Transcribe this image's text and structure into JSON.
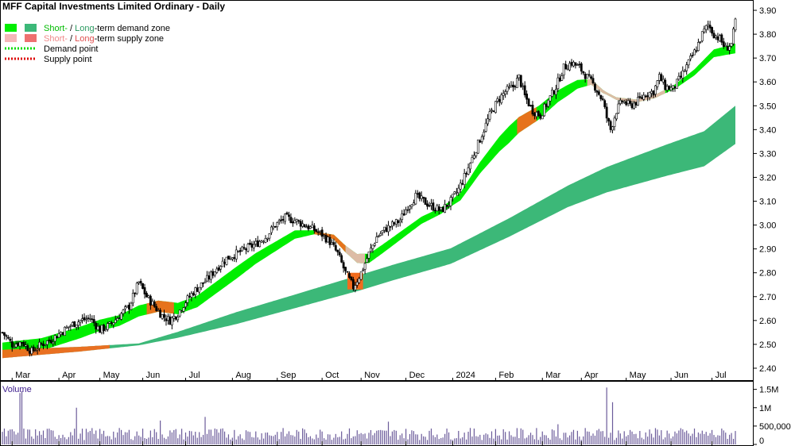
{
  "chart_data": {
    "type": "candlestick",
    "title": "MFF Capital Investments Limited Ordinary - Daily",
    "legend": {
      "demand_zone": {
        "short": "Short-",
        "sep": " / ",
        "long": "Long",
        "rest": "-term demand zone"
      },
      "supply_zone": {
        "short": "Short-",
        "sep": " / ",
        "long": "Long",
        "rest": "-term supply zone"
      },
      "demand_point": "Demand point",
      "supply_point": "Supply point"
    },
    "price_axis": {
      "ylim": [
        2.36,
        3.93
      ],
      "ticks": [
        "2.40",
        "2.50",
        "2.60",
        "2.70",
        "2.80",
        "2.90",
        "3.00",
        "3.10",
        "3.20",
        "3.30",
        "3.40",
        "3.50",
        "3.60",
        "3.70",
        "3.80",
        "3.90"
      ]
    },
    "x_axis": {
      "labels": [
        "Mar",
        "Apr",
        "May",
        "Jun",
        "Jul",
        "Aug",
        "Sep",
        "Oct",
        "Nov",
        "Dec",
        "2024",
        "Feb",
        "Mar",
        "Apr",
        "May",
        "Jun",
        "Jul"
      ],
      "ticks": [
        5,
        29,
        50,
        72,
        94,
        118,
        141,
        164,
        184,
        207,
        231,
        253,
        277,
        297,
        320,
        343,
        364
      ]
    },
    "volume": {
      "title": "Volume",
      "ticks": [
        "1.5M",
        "1M",
        "500,000",
        "0"
      ],
      "tick_values": [
        1500000,
        1000000,
        500000,
        0
      ],
      "ylim": [
        0,
        1600000
      ]
    },
    "price_path": [
      [
        0,
        2.55
      ],
      [
        5,
        2.5
      ],
      [
        10,
        2.51
      ],
      [
        15,
        2.47
      ],
      [
        20,
        2.5
      ],
      [
        25,
        2.52
      ],
      [
        30,
        2.55
      ],
      [
        35,
        2.58
      ],
      [
        40,
        2.6
      ],
      [
        45,
        2.61
      ],
      [
        50,
        2.56
      ],
      [
        55,
        2.58
      ],
      [
        60,
        2.62
      ],
      [
        65,
        2.66
      ],
      [
        68,
        2.72
      ],
      [
        70,
        2.76
      ],
      [
        72,
        2.73
      ],
      [
        74,
        2.7
      ],
      [
        78,
        2.66
      ],
      [
        82,
        2.62
      ],
      [
        86,
        2.6
      ],
      [
        90,
        2.63
      ],
      [
        94,
        2.68
      ],
      [
        98,
        2.72
      ],
      [
        102,
        2.75
      ],
      [
        106,
        2.78
      ],
      [
        110,
        2.82
      ],
      [
        115,
        2.86
      ],
      [
        120,
        2.88
      ],
      [
        125,
        2.9
      ],
      [
        130,
        2.92
      ],
      [
        135,
        2.95
      ],
      [
        140,
        3.0
      ],
      [
        145,
        3.03
      ],
      [
        150,
        3.02
      ],
      [
        155,
        3.0
      ],
      [
        160,
        2.98
      ],
      [
        164,
        2.96
      ],
      [
        168,
        2.93
      ],
      [
        172,
        2.88
      ],
      [
        176,
        2.8
      ],
      [
        180,
        2.74
      ],
      [
        184,
        2.8
      ],
      [
        188,
        2.88
      ],
      [
        192,
        2.95
      ],
      [
        196,
        2.98
      ],
      [
        200,
        3.0
      ],
      [
        204,
        3.02
      ],
      [
        208,
        3.08
      ],
      [
        212,
        3.12
      ],
      [
        216,
        3.1
      ],
      [
        220,
        3.08
      ],
      [
        225,
        3.06
      ],
      [
        230,
        3.1
      ],
      [
        234,
        3.15
      ],
      [
        238,
        3.22
      ],
      [
        242,
        3.3
      ],
      [
        246,
        3.38
      ],
      [
        250,
        3.46
      ],
      [
        254,
        3.52
      ],
      [
        258,
        3.56
      ],
      [
        262,
        3.58
      ],
      [
        265,
        3.62
      ],
      [
        268,
        3.54
      ],
      [
        272,
        3.48
      ],
      [
        276,
        3.46
      ],
      [
        280,
        3.52
      ],
      [
        284,
        3.58
      ],
      [
        288,
        3.66
      ],
      [
        292,
        3.68
      ],
      [
        296,
        3.66
      ],
      [
        300,
        3.62
      ],
      [
        304,
        3.58
      ],
      [
        308,
        3.52
      ],
      [
        310,
        3.45
      ],
      [
        312,
        3.4
      ],
      [
        315,
        3.48
      ],
      [
        318,
        3.52
      ],
      [
        322,
        3.5
      ],
      [
        326,
        3.52
      ],
      [
        330,
        3.55
      ],
      [
        334,
        3.56
      ],
      [
        337,
        3.62
      ],
      [
        340,
        3.58
      ],
      [
        344,
        3.57
      ],
      [
        348,
        3.62
      ],
      [
        352,
        3.68
      ],
      [
        356,
        3.74
      ],
      [
        359,
        3.8
      ],
      [
        362,
        3.84
      ],
      [
        365,
        3.8
      ],
      [
        368,
        3.78
      ],
      [
        371,
        3.74
      ],
      [
        374,
        3.76
      ],
      [
        376,
        3.85
      ]
    ],
    "ema_short": [
      [
        0,
        2.48
      ],
      [
        20,
        2.5
      ],
      [
        40,
        2.55
      ],
      [
        50,
        2.58
      ],
      [
        60,
        2.6
      ],
      [
        70,
        2.64
      ],
      [
        80,
        2.66
      ],
      [
        90,
        2.65
      ],
      [
        100,
        2.68
      ],
      [
        110,
        2.74
      ],
      [
        120,
        2.8
      ],
      [
        130,
        2.86
      ],
      [
        140,
        2.91
      ],
      [
        150,
        2.96
      ],
      [
        160,
        2.97
      ],
      [
        170,
        2.95
      ],
      [
        176,
        2.9
      ],
      [
        182,
        2.86
      ],
      [
        188,
        2.86
      ],
      [
        195,
        2.9
      ],
      [
        205,
        2.96
      ],
      [
        215,
        3.02
      ],
      [
        225,
        3.06
      ],
      [
        235,
        3.12
      ],
      [
        245,
        3.24
      ],
      [
        255,
        3.34
      ],
      [
        265,
        3.42
      ],
      [
        275,
        3.47
      ],
      [
        285,
        3.54
      ],
      [
        295,
        3.59
      ],
      [
        302,
        3.6
      ],
      [
        308,
        3.56
      ],
      [
        315,
        3.53
      ],
      [
        325,
        3.52
      ],
      [
        335,
        3.54
      ],
      [
        345,
        3.58
      ],
      [
        355,
        3.64
      ],
      [
        365,
        3.72
      ],
      [
        376,
        3.74
      ]
    ],
    "short_zone_width": [
      [
        0,
        0.055
      ],
      [
        60,
        0.045
      ],
      [
        120,
        0.05
      ],
      [
        150,
        0.035
      ],
      [
        164,
        0.01
      ],
      [
        184,
        0.04
      ],
      [
        230,
        0.025
      ],
      [
        260,
        0.07
      ],
      [
        290,
        0.045
      ],
      [
        310,
        0.01
      ],
      [
        340,
        0.015
      ],
      [
        376,
        0.04
      ]
    ],
    "ema_long": [
      [
        0,
        2.46
      ],
      [
        40,
        2.48
      ],
      [
        70,
        2.5
      ],
      [
        90,
        2.54
      ],
      [
        120,
        2.61
      ],
      [
        150,
        2.68
      ],
      [
        184,
        2.76
      ],
      [
        200,
        2.8
      ],
      [
        230,
        2.87
      ],
      [
        260,
        2.99
      ],
      [
        290,
        3.12
      ],
      [
        310,
        3.19
      ],
      [
        340,
        3.27
      ],
      [
        360,
        3.32
      ],
      [
        376,
        3.42
      ]
    ],
    "long_zone_width": [
      [
        0,
        0.035
      ],
      [
        70,
        0.008
      ],
      [
        120,
        0.05
      ],
      [
        184,
        0.065
      ],
      [
        230,
        0.065
      ],
      [
        290,
        0.09
      ],
      [
        376,
        0.16
      ]
    ],
    "supply_marks": [
      [
        76,
        2.68
      ],
      [
        82,
        2.64
      ],
      [
        168,
        2.95
      ],
      [
        170,
        2.93
      ],
      [
        180,
        2.78
      ],
      [
        182,
        2.78
      ],
      [
        268,
        3.45
      ],
      [
        272,
        3.47
      ],
      [
        305,
        3.56
      ],
      [
        308,
        3.54
      ]
    ]
  },
  "colors": {
    "short_demand": "#00ee00",
    "long_demand": "#3cb878",
    "short_supply": "#f5b6b8",
    "long_supply": "#ee7070",
    "supply_fill": "#f26b1d",
    "demand_point": "#00dd00",
    "supply_point": "#dd0000",
    "candle": "#000000",
    "volume_bar": "#6b5b9a"
  }
}
